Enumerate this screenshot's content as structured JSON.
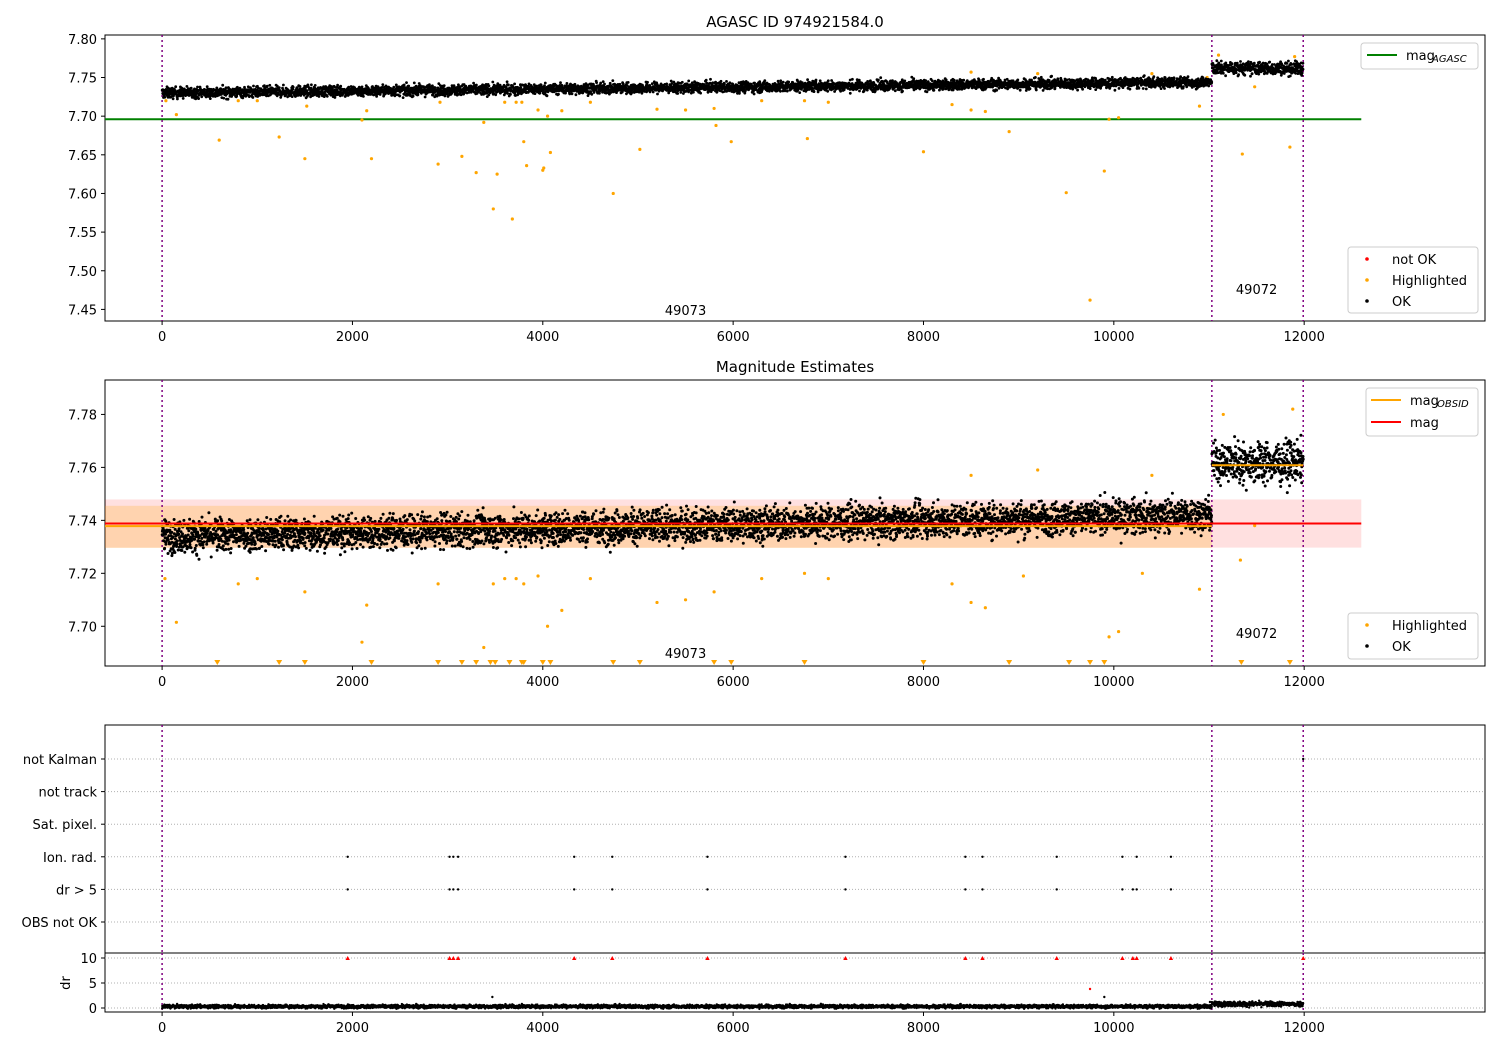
{
  "chart_data": [
    {
      "type": "scatter",
      "title": "AGASC ID 974921584.0",
      "xlim": [
        -600,
        13900
      ],
      "ylim": [
        7.435,
        7.805
      ],
      "xticks": [
        0,
        2000,
        4000,
        6000,
        8000,
        10000,
        12000
      ],
      "yticks": [
        7.45,
        7.5,
        7.55,
        7.6,
        7.65,
        7.7,
        7.75,
        7.8
      ],
      "ytick_labels": [
        "7.45",
        "7.50",
        "7.55",
        "7.60",
        "7.65",
        "7.70",
        "7.75",
        "7.80"
      ],
      "obsid_boundaries": [
        0,
        11030,
        11990
      ],
      "obsid_labels": [
        {
          "text": "49073",
          "x": 5500,
          "y": 7.443
        },
        {
          "text": "49072",
          "x": 11500,
          "y": 7.47
        }
      ],
      "reference_lines": [
        {
          "name": "mag",
          "subscript": "AGASC",
          "value": 7.696,
          "x_range": [
            -600,
            12600
          ],
          "color": "#008000"
        }
      ],
      "legend_top_right": [
        {
          "name": "mag",
          "subscript": "AGASC",
          "color": "#008000",
          "marker": "line"
        }
      ],
      "legend_bottom_right": [
        {
          "name": "not OK",
          "color": "#ff0000",
          "marker": "dot"
        },
        {
          "name": "Highlighted",
          "color": "#ffa500",
          "marker": "dot"
        },
        {
          "name": "OK",
          "color": "#000000",
          "marker": "dot"
        }
      ],
      "series": [
        {
          "name": "OK",
          "color": "#000000",
          "segments": [
            {
              "x0": 0,
              "x1": 11030,
              "y0": 7.73,
              "y1": 7.744,
              "spread": 0.005
            },
            {
              "x0": 11030,
              "x1": 11990,
              "y0": 7.762,
              "y1": 7.762,
              "spread": 0.006
            }
          ]
        },
        {
          "name": "Highlighted",
          "color": "#ffa500",
          "points": [
            [
              40,
              7.72
            ],
            [
              150,
              7.702
            ],
            [
              600,
              7.669
            ],
            [
              800,
              7.72
            ],
            [
              1000,
              7.72
            ],
            [
              1230,
              7.673
            ],
            [
              1500,
              7.645
            ],
            [
              1520,
              7.713
            ],
            [
              2100,
              7.695
            ],
            [
              2150,
              7.707
            ],
            [
              2200,
              7.645
            ],
            [
              2900,
              7.638
            ],
            [
              2920,
              7.718
            ],
            [
              3150,
              7.648
            ],
            [
              3300,
              7.627
            ],
            [
              3380,
              7.692
            ],
            [
              3480,
              7.58
            ],
            [
              3520,
              7.625
            ],
            [
              3600,
              7.718
            ],
            [
              3680,
              7.567
            ],
            [
              3720,
              7.718
            ],
            [
              3780,
              7.718
            ],
            [
              3800,
              7.667
            ],
            [
              3830,
              7.636
            ],
            [
              3950,
              7.708
            ],
            [
              4000,
              7.63
            ],
            [
              4010,
              7.633
            ],
            [
              4050,
              7.7
            ],
            [
              4080,
              7.653
            ],
            [
              4200,
              7.707
            ],
            [
              4500,
              7.718
            ],
            [
              4740,
              7.6
            ],
            [
              5020,
              7.657
            ],
            [
              5200,
              7.709
            ],
            [
              5500,
              7.708
            ],
            [
              5800,
              7.71
            ],
            [
              5820,
              7.688
            ],
            [
              5980,
              7.667
            ],
            [
              6300,
              7.72
            ],
            [
              6750,
              7.72
            ],
            [
              6780,
              7.671
            ],
            [
              7000,
              7.718
            ],
            [
              8000,
              7.654
            ],
            [
              8300,
              7.715
            ],
            [
              8500,
              7.708
            ],
            [
              8650,
              7.706
            ],
            [
              8900,
              7.68
            ],
            [
              9500,
              7.601
            ],
            [
              9750,
              7.462
            ],
            [
              9900,
              7.629
            ],
            [
              9950,
              7.696
            ],
            [
              10050,
              7.698
            ],
            [
              10900,
              7.713
            ],
            [
              10980,
              7.75
            ],
            [
              11350,
              7.651
            ],
            [
              11480,
              7.738
            ],
            [
              11850,
              7.66
            ],
            [
              11900,
              7.777
            ],
            [
              8500,
              7.757
            ],
            [
              9200,
              7.755
            ],
            [
              10400,
              7.755
            ],
            [
              11100,
              7.779
            ]
          ]
        }
      ]
    },
    {
      "type": "scatter",
      "title": "Magnitude Estimates",
      "xlim": [
        -600,
        13900
      ],
      "ylim": [
        7.685,
        7.793
      ],
      "xticks": [
        0,
        2000,
        4000,
        6000,
        8000,
        10000,
        12000
      ],
      "yticks": [
        7.7,
        7.72,
        7.74,
        7.76,
        7.78
      ],
      "ytick_labels": [
        "7.70",
        "7.72",
        "7.74",
        "7.76",
        "7.78"
      ],
      "obsid_boundaries": [
        0,
        11030,
        11990
      ],
      "obsid_labels": [
        {
          "text": "49073",
          "x": 5500,
          "y": 7.688
        },
        {
          "text": "49072",
          "x": 11500,
          "y": 7.6955
        }
      ],
      "bands": [
        {
          "name": "mag",
          "low": 7.7297,
          "high": 7.7479,
          "x_range": [
            -600,
            12600
          ],
          "color": "#ff0000",
          "opacity": 0.12
        },
        {
          "name": "mag OBSID 49073",
          "low": 7.7296,
          "high": 7.7455,
          "x_range": [
            -600,
            11030
          ],
          "color": "#ffa500",
          "opacity": 0.22
        }
      ],
      "reference_lines": [
        {
          "name": "mag",
          "value": 7.7388,
          "x_range": [
            -600,
            12600
          ],
          "color": "#ff0000"
        },
        {
          "name": "mag OBSID 49073",
          "value": 7.7378,
          "x_range": [
            -600,
            11030
          ],
          "color": "#ffa500"
        },
        {
          "name": "mag OBSID 49072",
          "value": 7.7608,
          "x_range": [
            11030,
            11990
          ],
          "color": "#ffa500"
        }
      ],
      "legend_top_right": [
        {
          "name": "mag",
          "subscript": "OBSID",
          "color": "#ffa500",
          "marker": "line"
        },
        {
          "name": "mag",
          "subscript": "",
          "color": "#ff0000",
          "marker": "line"
        }
      ],
      "legend_bottom_right": [
        {
          "name": "Highlighted",
          "color": "#ffa500",
          "marker": "dot"
        },
        {
          "name": "OK",
          "color": "#000000",
          "marker": "dot"
        }
      ],
      "series": [
        {
          "name": "OK",
          "color": "#000000",
          "segments": [
            {
              "x0": 0,
              "x1": 11030,
              "y0": 7.734,
              "y1": 7.742,
              "spread": 0.0045
            },
            {
              "x0": 11030,
              "x1": 11990,
              "y0": 7.762,
              "y1": 7.762,
              "spread": 0.0055
            }
          ]
        },
        {
          "name": "Highlighted",
          "color": "#ffa500",
          "points": [
            [
              30,
              7.718
            ],
            [
              150,
              7.7015
            ],
            [
              800,
              7.716
            ],
            [
              1000,
              7.718
            ],
            [
              1500,
              7.713
            ],
            [
              2150,
              7.708
            ],
            [
              2100,
              7.694
            ],
            [
              2900,
              7.716
            ],
            [
              3380,
              7.692
            ],
            [
              3480,
              7.716
            ],
            [
              3600,
              7.718
            ],
            [
              3720,
              7.718
            ],
            [
              3800,
              7.716
            ],
            [
              3950,
              7.719
            ],
            [
              4050,
              7.7
            ],
            [
              4200,
              7.706
            ],
            [
              4500,
              7.718
            ],
            [
              5200,
              7.709
            ],
            [
              5500,
              7.71
            ],
            [
              5800,
              7.713
            ],
            [
              6300,
              7.718
            ],
            [
              6750,
              7.72
            ],
            [
              7000,
              7.718
            ],
            [
              8300,
              7.716
            ],
            [
              8500,
              7.709
            ],
            [
              8650,
              7.707
            ],
            [
              9050,
              7.719
            ],
            [
              9950,
              7.696
            ],
            [
              10050,
              7.698
            ],
            [
              10300,
              7.72
            ],
            [
              10900,
              7.714
            ],
            [
              11330,
              7.725
            ],
            [
              11480,
              7.738
            ],
            [
              11150,
              7.78
            ],
            [
              11880,
              7.782
            ],
            [
              8500,
              7.757
            ],
            [
              9200,
              7.759
            ],
            [
              10400,
              7.757
            ]
          ]
        },
        {
          "name": "Highlighted (below range)",
          "color": "#ffa500",
          "marker": "triangle-down",
          "x": [
            580,
            1230,
            1500,
            2200,
            2900,
            3150,
            3300,
            3450,
            3500,
            3650,
            3780,
            3800,
            4000,
            4080,
            4740,
            5020,
            5800,
            5980,
            6750,
            8000,
            8900,
            9530,
            9750,
            9900,
            11340,
            11850
          ]
        }
      ]
    },
    {
      "type": "scatter",
      "title": "",
      "xlim": [
        -600,
        13900
      ],
      "categories": [
        "not Kalman",
        "not track",
        "Sat. pixel.",
        "Ion. rad.",
        "dr > 5",
        "OBS not OK"
      ],
      "obsid_boundaries": [
        0,
        11030,
        11990
      ],
      "flag_events": {
        "Ion. rad.": [
          1950,
          3020,
          3060,
          3110,
          4330,
          4730,
          5730,
          7180,
          8440,
          8620,
          9400,
          10090,
          10240,
          10600
        ],
        "dr > 5": [
          1950,
          3020,
          3060,
          3110,
          4330,
          4730,
          5730,
          7180,
          8440,
          8620,
          9400,
          10090,
          10200,
          10240,
          10600
        ],
        "not Kalman": [
          11990
        ]
      }
    },
    {
      "type": "scatter",
      "title": "",
      "ylabel": "dr",
      "xlim": [
        -600,
        13900
      ],
      "ylim": [
        -0.8,
        11
      ],
      "xticks": [
        0,
        2000,
        4000,
        6000,
        8000,
        10000,
        12000
      ],
      "yticks": [
        0,
        5,
        10
      ],
      "obsid_boundaries": [
        0,
        11030,
        11990
      ],
      "series": [
        {
          "name": "dr",
          "color": "#000000",
          "segments": [
            {
              "x0": 0,
              "x1": 11030,
              "y0": 0.3,
              "y1": 0.3,
              "spread": 0.25
            },
            {
              "x0": 11030,
              "x1": 11990,
              "y0": 0.8,
              "y1": 0.8,
              "spread": 0.35
            }
          ],
          "points": [
            [
              3470,
              2.2
            ],
            [
              9750,
              3.8
            ],
            [
              9900,
              2.2
            ],
            [
              11010,
              1.2
            ]
          ]
        },
        {
          "name": "dr clipped",
          "color": "#ff0000",
          "marker": "triangle-up",
          "y": 10,
          "x": [
            1950,
            3020,
            3060,
            3110,
            4330,
            4730,
            5730,
            7180,
            8440,
            8620,
            9400,
            10090,
            10200,
            10240,
            10600,
            11990
          ]
        }
      ]
    }
  ]
}
